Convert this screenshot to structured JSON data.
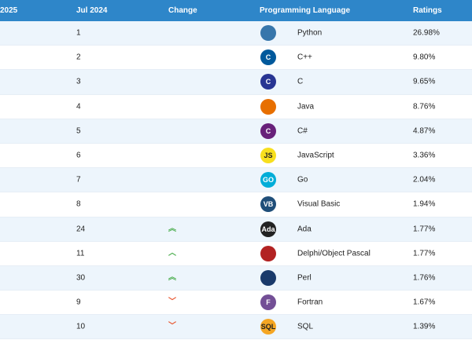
{
  "header": {
    "col_first": "2025",
    "col_prev": "Jul 2024",
    "col_change": "Change",
    "col_lang": "Programming Language",
    "col_rating": "Ratings"
  },
  "rows": [
    {
      "prev": "1",
      "change": "",
      "lang": "Python",
      "rating": "26.98%",
      "icon": "python-icon",
      "icon_color": "#3776ab"
    },
    {
      "prev": "2",
      "change": "",
      "lang": "C++",
      "rating": "9.80%",
      "icon": "cpp-icon",
      "icon_color": "#00599c"
    },
    {
      "prev": "3",
      "change": "",
      "lang": "C",
      "rating": "9.65%",
      "icon": "c-icon",
      "icon_color": "#283593"
    },
    {
      "prev": "4",
      "change": "",
      "lang": "Java",
      "rating": "8.76%",
      "icon": "java-icon",
      "icon_color": "#e76f00"
    },
    {
      "prev": "5",
      "change": "",
      "lang": "C#",
      "rating": "4.87%",
      "icon": "csharp-icon",
      "icon_color": "#68217a"
    },
    {
      "prev": "6",
      "change": "",
      "lang": "JavaScript",
      "rating": "3.36%",
      "icon": "javascript-icon",
      "icon_color": "#f7df1e"
    },
    {
      "prev": "7",
      "change": "",
      "lang": "Go",
      "rating": "2.04%",
      "icon": "go-icon",
      "icon_color": "#00add8"
    },
    {
      "prev": "8",
      "change": "",
      "lang": "Visual Basic",
      "rating": "1.94%",
      "icon": "visual-basic-icon",
      "icon_color": "#1f4e79"
    },
    {
      "prev": "24",
      "change": "up2",
      "lang": "Ada",
      "rating": "1.77%",
      "icon": "ada-icon",
      "icon_color": "#222222"
    },
    {
      "prev": "11",
      "change": "up1",
      "lang": "Delphi/Object Pascal",
      "rating": "1.77%",
      "icon": "delphi-icon",
      "icon_color": "#b22222"
    },
    {
      "prev": "30",
      "change": "up2",
      "lang": "Perl",
      "rating": "1.76%",
      "icon": "perl-icon",
      "icon_color": "#1a3a6b"
    },
    {
      "prev": "9",
      "change": "down",
      "lang": "Fortran",
      "rating": "1.67%",
      "icon": "fortran-icon",
      "icon_color": "#734f96"
    },
    {
      "prev": "10",
      "change": "down",
      "lang": "SQL",
      "rating": "1.39%",
      "icon": "sql-icon",
      "icon_color": "#f5a623"
    }
  ],
  "glyphs": {
    "up2": "︽",
    "up1": "︿",
    "down": "﹀"
  },
  "logo_text": {
    "python-icon": "",
    "cpp-icon": "C",
    "c-icon": "C",
    "java-icon": "",
    "csharp-icon": "C",
    "javascript-icon": "JS",
    "go-icon": "GO",
    "visual-basic-icon": "VB",
    "ada-icon": "Ada",
    "delphi-icon": "",
    "perl-icon": "",
    "fortran-icon": "F",
    "sql-icon": "SQL"
  }
}
